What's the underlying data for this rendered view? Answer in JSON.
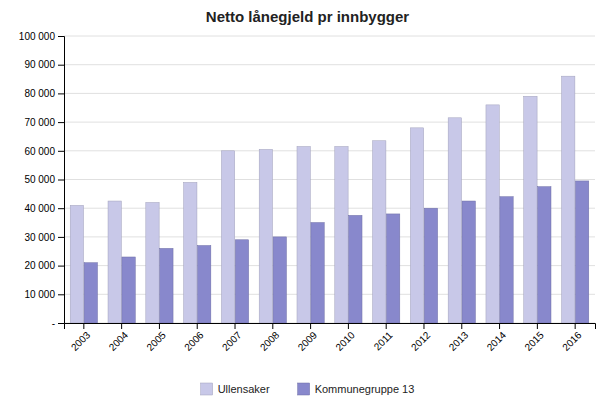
{
  "chart_data": {
    "type": "bar",
    "title": "Netto lånegjeld pr innbygger",
    "categories": [
      "2003",
      "2004",
      "2005",
      "2006",
      "2007",
      "2008",
      "2009",
      "2010",
      "2011",
      "2012",
      "2013",
      "2014",
      "2015",
      "2016"
    ],
    "series": [
      {
        "name": "Ullensaker",
        "color": "#C8C8E8",
        "values": [
          41000,
          42500,
          42000,
          49000,
          60000,
          60500,
          61500,
          61500,
          63500,
          68000,
          71500,
          76000,
          79000,
          86000
        ]
      },
      {
        "name": "Kommunegruppe 13",
        "color": "#8888CC",
        "values": [
          21000,
          23000,
          26000,
          27000,
          29000,
          30000,
          35000,
          37500,
          38000,
          40000,
          42500,
          44000,
          47500,
          49500
        ]
      }
    ],
    "ylim": [
      0,
      100000
    ],
    "yticks": [
      {
        "value": 0,
        "label": "-"
      },
      {
        "value": 10000,
        "label": "10 000"
      },
      {
        "value": 20000,
        "label": "20 000"
      },
      {
        "value": 30000,
        "label": "30 000"
      },
      {
        "value": 40000,
        "label": "40 000"
      },
      {
        "value": 50000,
        "label": "50 000"
      },
      {
        "value": 60000,
        "label": "60 000"
      },
      {
        "value": 70000,
        "label": "70 000"
      },
      {
        "value": 80000,
        "label": "80 000"
      },
      {
        "value": 90000,
        "label": "90 000"
      },
      {
        "value": 100000,
        "label": "100 000"
      }
    ],
    "grid": true,
    "legend": "bottom"
  }
}
